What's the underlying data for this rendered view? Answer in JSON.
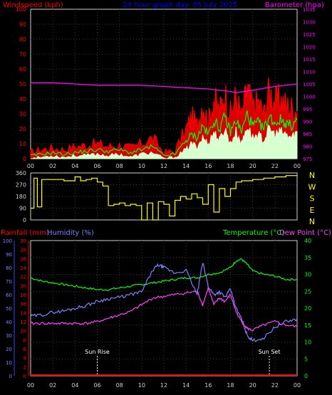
{
  "colors": {
    "background": "#000000",
    "grid": "#3a3a3a",
    "axis": "#d0d0d0",
    "wind_gust": "#ff0000",
    "wind_avg": "#00ff00",
    "wind_min": "#d8ffd0",
    "barometer": "#ff00ff",
    "direction": "#ffff00",
    "temperature": "#00ff00",
    "humidity": "#8080ff",
    "dewpoint": "#ff40ff",
    "rain": "#ff0000",
    "rain_axis": "#4040ff",
    "sun": "#ffffff",
    "title": "#0000ff"
  },
  "chart_data": [
    {
      "type": "line",
      "title": "24 hour graph day: 05 July 2025",
      "left_axis_label": "Windspeed (kph)",
      "right_axis_label": "Barometer (hpa)",
      "x_ticks": [
        "00",
        "02",
        "04",
        "06",
        "08",
        "10",
        "12",
        "14",
        "16",
        "18",
        "20",
        "22",
        "00"
      ],
      "xlim": [
        0,
        24
      ],
      "y_left_ticks": [
        "0",
        "10",
        "20",
        "30",
        "40",
        "50",
        "60",
        "70",
        "80",
        "90",
        "100"
      ],
      "y_left_lim": [
        0,
        100
      ],
      "y_right_ticks": [
        "975",
        "980",
        "985",
        "990",
        "995",
        "1000",
        "1005",
        "1010",
        "1015",
        "1020",
        "1025",
        "1030",
        "1035"
      ],
      "y_right_lim": [
        975,
        1035
      ],
      "grid": true,
      "series": [
        {
          "key": "gust",
          "axis": "left",
          "x": [
            0,
            1,
            2,
            3,
            4,
            5,
            6,
            7,
            8,
            9,
            10,
            11,
            12,
            13,
            14,
            14.5,
            15,
            15.5,
            16,
            16.5,
            17,
            17.5,
            18,
            18.5,
            19,
            19.5,
            20,
            20.5,
            21,
            21.5,
            22,
            22.5,
            23,
            23.5,
            24
          ],
          "values": [
            4,
            6,
            7,
            6,
            8,
            9,
            10,
            8,
            9,
            7,
            10,
            14,
            4,
            5,
            20,
            28,
            22,
            38,
            24,
            40,
            32,
            44,
            30,
            42,
            28,
            48,
            34,
            38,
            30,
            46,
            38,
            40,
            36,
            34,
            32
          ]
        },
        {
          "key": "average",
          "axis": "left",
          "x": [
            0,
            1,
            2,
            3,
            4,
            5,
            6,
            7,
            8,
            9,
            10,
            11,
            12,
            13,
            14,
            14.5,
            15,
            15.5,
            16,
            16.5,
            17,
            17.5,
            18,
            18.5,
            19,
            19.5,
            20,
            20.5,
            21,
            21.5,
            22,
            22.5,
            23,
            23.5,
            24
          ],
          "values": [
            2,
            3,
            4,
            3,
            4,
            5,
            6,
            5,
            6,
            4,
            6,
            8,
            2,
            3,
            12,
            16,
            14,
            22,
            16,
            26,
            20,
            28,
            18,
            26,
            18,
            30,
            22,
            24,
            20,
            28,
            24,
            26,
            24,
            22,
            26
          ]
        },
        {
          "key": "minimum",
          "axis": "left",
          "x": [
            0,
            1,
            2,
            3,
            4,
            5,
            6,
            7,
            8,
            9,
            10,
            11,
            12,
            13,
            14,
            14.5,
            15,
            15.5,
            16,
            16.5,
            17,
            17.5,
            18,
            18.5,
            19,
            19.5,
            20,
            20.5,
            21,
            21.5,
            22,
            22.5,
            23,
            23.5,
            24
          ],
          "values": [
            0,
            1,
            2,
            1,
            2,
            2,
            3,
            2,
            3,
            1,
            3,
            4,
            0,
            1,
            6,
            10,
            8,
            14,
            10,
            18,
            12,
            20,
            10,
            18,
            10,
            22,
            14,
            16,
            12,
            20,
            16,
            18,
            16,
            14,
            18
          ]
        },
        {
          "key": "barometer",
          "axis": "right",
          "x": [
            0,
            2,
            4,
            6,
            8,
            10,
            12,
            14,
            16,
            18,
            18.5,
            20,
            22,
            24
          ],
          "values": [
            1005.5,
            1005.5,
            1005,
            1004.5,
            1004.5,
            1004.5,
            1004,
            1003.5,
            1003,
            1002,
            1001.5,
            1002.5,
            1004,
            1005
          ]
        }
      ]
    },
    {
      "type": "line",
      "x_ticks": [
        "00",
        "02",
        "04",
        "06",
        "08",
        "10",
        "12",
        "14",
        "16",
        "18",
        "20",
        "22",
        "00"
      ],
      "xlim": [
        0,
        24
      ],
      "y_ticks": [
        "0",
        "90",
        "180",
        "270",
        "360"
      ],
      "ylim": [
        0,
        360
      ],
      "compass": [
        "N",
        "W",
        "S",
        "E",
        "N"
      ],
      "grid": true,
      "series": [
        {
          "key": "direction",
          "x": [
            0,
            0.3,
            0.6,
            1,
            2,
            3,
            4,
            4.5,
            5,
            5.5,
            6,
            6.5,
            7,
            7.5,
            8,
            8.5,
            9,
            9.5,
            10,
            10.5,
            11,
            11.5,
            12,
            12.5,
            13,
            13.5,
            14,
            14.5,
            15,
            15.5,
            16,
            16.5,
            17,
            17.5,
            18,
            18.5,
            19,
            20,
            21,
            22,
            23,
            24
          ],
          "values": [
            90,
            320,
            100,
            310,
            310,
            300,
            330,
            300,
            310,
            320,
            290,
            260,
            110,
            120,
            130,
            110,
            120,
            110,
            0,
            130,
            0,
            140,
            120,
            30,
            150,
            180,
            160,
            200,
            170,
            120,
            270,
            60,
            240,
            180,
            240,
            290,
            300,
            310,
            320,
            330,
            340,
            340
          ]
        }
      ]
    },
    {
      "type": "line",
      "left_axis_labels": [
        "Rainfall (mm)",
        "Humidity (%)"
      ],
      "right_axis_labels": [
        "Temperature (°C)",
        "Dew Point (°C)"
      ],
      "annotations": [
        "Sun Rise",
        "Sun Set"
      ],
      "annotation_x": [
        6.0,
        21.5
      ],
      "x_ticks": [
        "00",
        "02",
        "04",
        "06",
        "08",
        "10",
        "12",
        "14",
        "16",
        "18",
        "20",
        "22",
        "00"
      ],
      "xlim": [
        0,
        24
      ],
      "humidity_ticks": [
        "0",
        "10",
        "20",
        "30",
        "40",
        "50",
        "60",
        "70",
        "80",
        "90",
        "100"
      ],
      "humidity_lim": [
        0,
        100
      ],
      "rain_ticks": [
        "0",
        "2",
        "4",
        "6",
        "8",
        "10",
        "12",
        "14",
        "16",
        "18",
        "20",
        "22",
        "24",
        "26",
        "28",
        "30"
      ],
      "rain_lim": [
        0,
        30
      ],
      "temp_ticks": [
        "0",
        "5",
        "10",
        "15",
        "20",
        "25",
        "30",
        "35",
        "40"
      ],
      "temp_lim": [
        0,
        40
      ],
      "grid": true,
      "series": [
        {
          "key": "temperature",
          "axis": "temp",
          "x": [
            0,
            1,
            2,
            3,
            4,
            5,
            6,
            7,
            8,
            9,
            10,
            11,
            12,
            13,
            14,
            15,
            16,
            17,
            18,
            18.5,
            19,
            19.5,
            20,
            21,
            22,
            23,
            24
          ],
          "values": [
            29,
            28,
            27.5,
            27,
            26.5,
            26,
            25.5,
            25.5,
            26,
            26.5,
            27,
            27.5,
            28,
            28.5,
            29,
            29,
            30,
            30.5,
            32,
            34,
            34.5,
            33,
            31,
            30,
            29.5,
            28.5,
            28.5
          ]
        },
        {
          "key": "humidity",
          "axis": "humidity",
          "x": [
            0,
            1,
            2,
            3,
            4,
            5,
            6,
            7,
            8,
            9,
            10,
            11,
            11.5,
            12,
            13,
            14,
            15,
            15.5,
            16,
            16.5,
            17,
            17.5,
            18,
            18.5,
            19,
            19.5,
            20,
            21,
            22,
            23,
            24
          ],
          "values": [
            44,
            45,
            47,
            48,
            50,
            52,
            55,
            57,
            58,
            60,
            62,
            78,
            82,
            80,
            76,
            78,
            60,
            84,
            66,
            60,
            62,
            58,
            64,
            50,
            42,
            30,
            26,
            28,
            36,
            40,
            42
          ]
        },
        {
          "key": "dewpoint",
          "axis": "temp",
          "x": [
            0,
            1,
            2,
            3,
            4,
            5,
            6,
            7,
            8,
            9,
            10,
            11,
            12,
            13,
            14,
            15,
            15.5,
            16,
            16.5,
            17,
            17.5,
            18,
            18.5,
            19,
            19.5,
            20,
            21,
            22,
            23,
            24
          ],
          "values": [
            15.5,
            15.5,
            15.5,
            15.5,
            15.5,
            15.5,
            16,
            17,
            18,
            19,
            21,
            23,
            23.5,
            24,
            24.5,
            25,
            21,
            26,
            21,
            23,
            22,
            24,
            19,
            16,
            14,
            13.5,
            15,
            16,
            15,
            14.5
          ]
        },
        {
          "key": "rain",
          "axis": "rain",
          "x": [
            0,
            24
          ],
          "values": [
            0,
            0
          ]
        }
      ]
    }
  ]
}
